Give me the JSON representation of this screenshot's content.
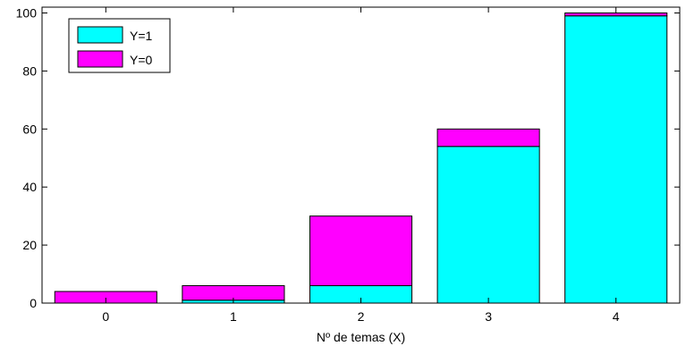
{
  "chart_data": {
    "type": "bar",
    "stacked": true,
    "categories": [
      "0",
      "1",
      "2",
      "3",
      "4"
    ],
    "series": [
      {
        "name": "Y=1",
        "values": [
          0,
          1,
          6,
          54,
          99
        ],
        "color": "#00FFFF"
      },
      {
        "name": "Y=0",
        "values": [
          4,
          5,
          24,
          6,
          1
        ],
        "color": "#FF00FF"
      }
    ],
    "title": "",
    "xlabel": "Nº de temas (X)",
    "ylabel": "",
    "ylim": [
      0,
      102
    ],
    "yticks": [
      0,
      20,
      40,
      60,
      80,
      100
    ],
    "grid": false,
    "legend_position": "top-left"
  }
}
